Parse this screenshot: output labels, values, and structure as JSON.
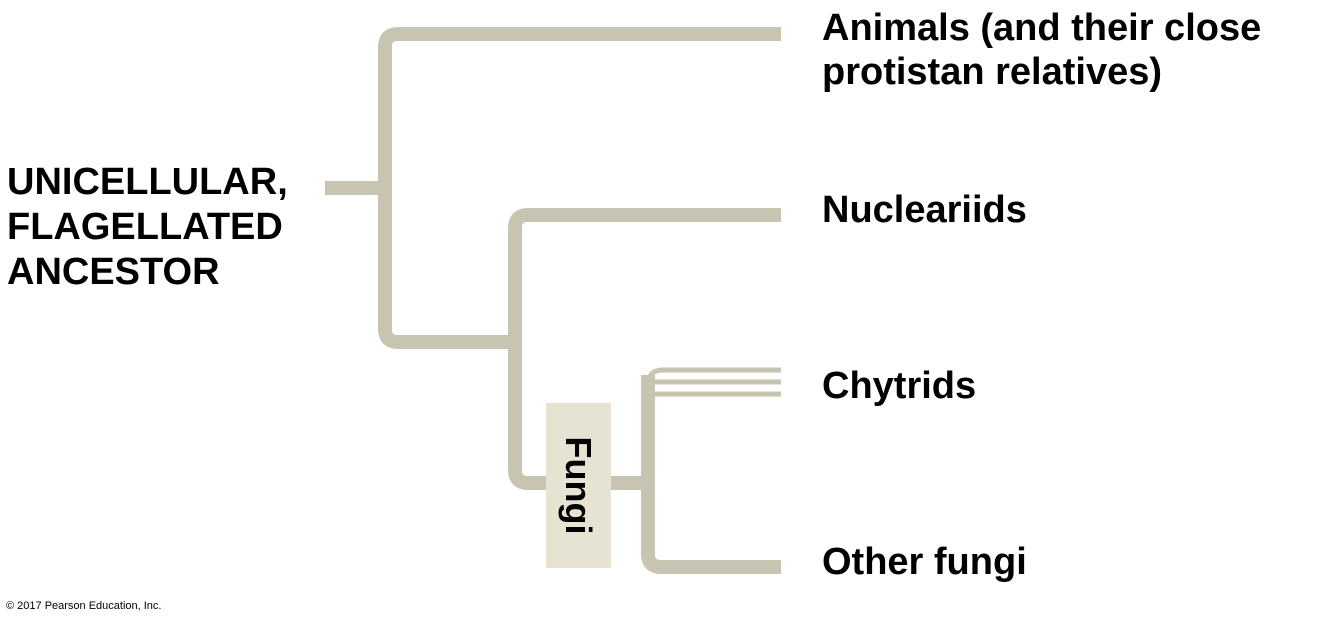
{
  "colors": {
    "branch": "#c7c5b1",
    "fungi_box": "#e6e3d3",
    "text": "#000000"
  },
  "ancestor": {
    "lines": [
      "UNICELLULAR,",
      "FLAGELLATED",
      "ANCESTOR"
    ]
  },
  "taxa": {
    "animals": [
      "Animals (and their close",
      "protistan relatives)"
    ],
    "nucleariids": "Nucleariids",
    "chytrids": "Chytrids",
    "other_fungi": "Other fungi"
  },
  "clade_label": "Fungi",
  "copyright": "© 2017 Pearson Education, Inc."
}
